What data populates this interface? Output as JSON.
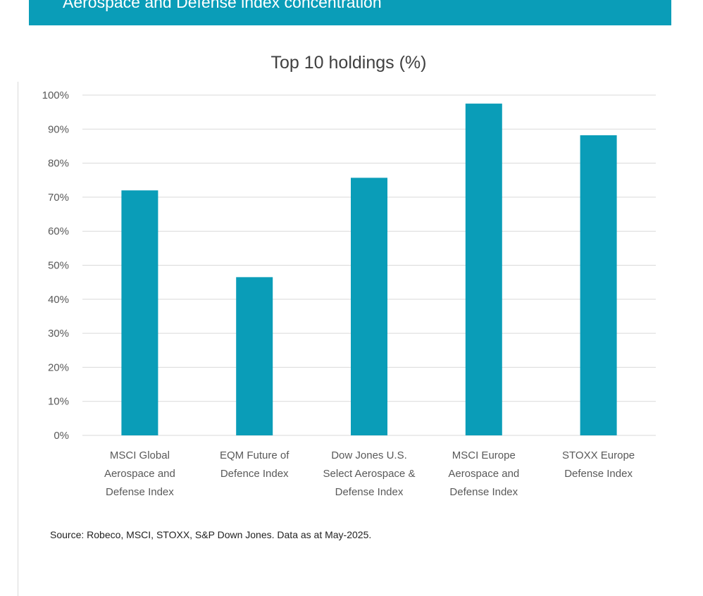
{
  "header": {
    "title": "Aerospace and Defense index concentration"
  },
  "source_note": "Source: Robeco, MSCI, STOXX, S&P Down Jones. Data as at  May-2025.",
  "colors": {
    "banner": "#0a9db8",
    "bar": "#0a9db8",
    "grid": "#d9d9d9"
  },
  "chart_data": {
    "type": "bar",
    "title": "Top 10 holdings (%)",
    "xlabel": "",
    "ylabel": "",
    "categories": [
      [
        "MSCI Global",
        "Aerospace and",
        "Defense Index"
      ],
      [
        "EQM Future of",
        "Defence Index"
      ],
      [
        "Dow Jones U.S.",
        "Select Aerospace &",
        "Defense Index"
      ],
      [
        "MSCI Europe",
        "Aerospace and",
        "Defense Index"
      ],
      [
        "STOXX Europe",
        "Defense Index"
      ]
    ],
    "values": [
      72,
      46.5,
      75.7,
      97.5,
      88.2
    ],
    "ylim": [
      0,
      100
    ],
    "yticks": [
      0,
      10,
      20,
      30,
      40,
      50,
      60,
      70,
      80,
      90,
      100
    ],
    "ytick_labels": [
      "0%",
      "10%",
      "20%",
      "30%",
      "40%",
      "50%",
      "60%",
      "70%",
      "80%",
      "90%",
      "100%"
    ],
    "grid": true,
    "legend": "none"
  }
}
